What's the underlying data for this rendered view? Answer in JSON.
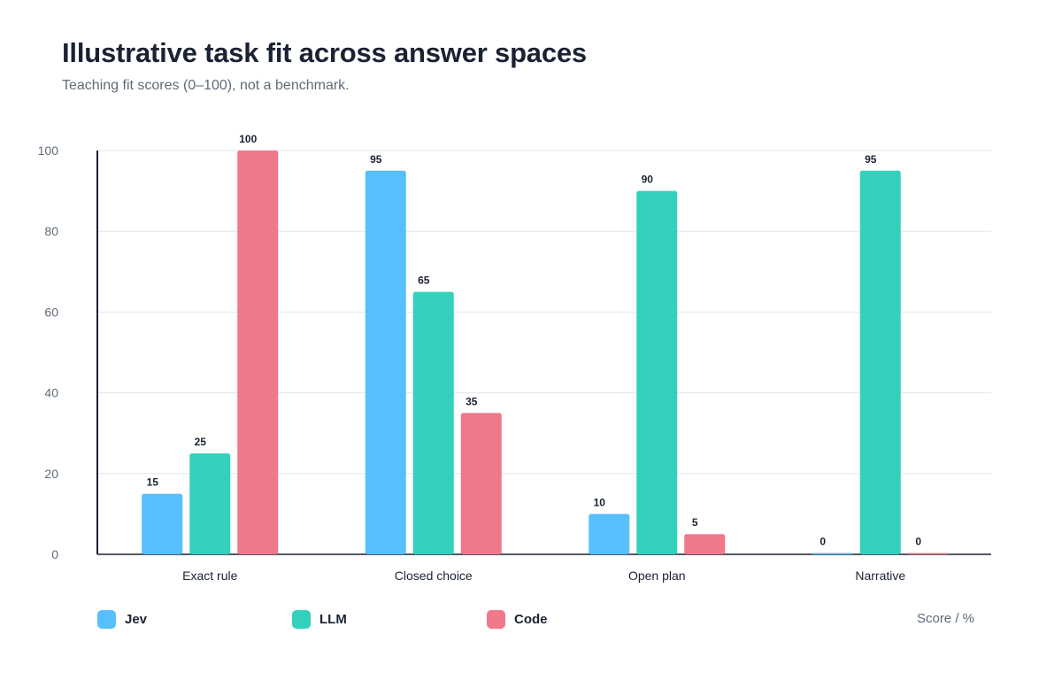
{
  "title": "Illustrative task fit across answer spaces",
  "subtitle": "Teaching fit scores (0–100), not a benchmark.",
  "unit_label": "Score / %",
  "chart_data": {
    "type": "bar",
    "categories": [
      "Exact rule",
      "Closed choice",
      "Open plan",
      "Narrative"
    ],
    "series": [
      {
        "name": "Jev",
        "color": "#57bffc",
        "values": [
          15,
          95,
          10,
          0
        ]
      },
      {
        "name": "LLM",
        "color": "#33d1bb",
        "values": [
          25,
          65,
          90,
          95
        ]
      },
      {
        "name": "Code",
        "color": "#f0788b",
        "values": [
          100,
          35,
          5,
          0
        ]
      }
    ],
    "ylim": [
      0,
      100
    ],
    "yticks": [
      0,
      20,
      40,
      60,
      80,
      100
    ],
    "grid": true,
    "legend": "bottom"
  }
}
